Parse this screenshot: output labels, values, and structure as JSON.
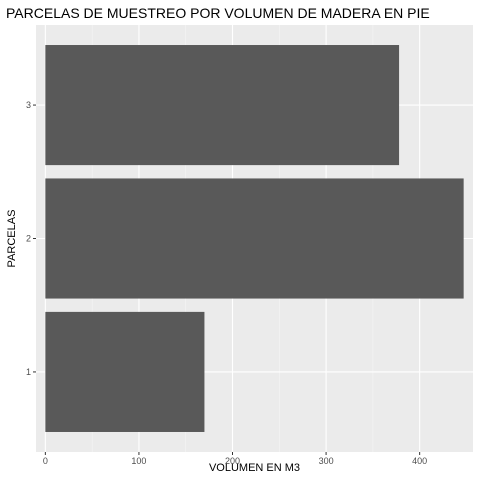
{
  "chart_data": {
    "type": "bar",
    "orientation": "horizontal",
    "title": "PARCELAS DE MUESTREO POR VOLUMEN DE MADERA EN PIE",
    "xlabel": "VOLUMEN EN M3",
    "ylabel": "PARCELAS",
    "categories": [
      "1",
      "2",
      "3"
    ],
    "values": [
      170,
      447,
      378
    ],
    "xlim": [
      -10,
      457
    ],
    "xticks": [
      0,
      100,
      200,
      300,
      400
    ],
    "grid": true,
    "legend": "none",
    "colors": {
      "bar": "#595959",
      "panel": "#ebebeb",
      "grid_major": "#ffffff",
      "grid_minor": "#f5f5f5"
    }
  }
}
